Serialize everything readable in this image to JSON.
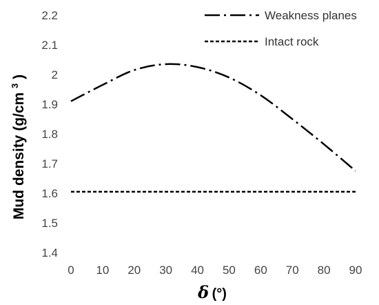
{
  "chart_data": {
    "type": "line",
    "x": [
      0,
      10,
      20,
      30,
      40,
      50,
      60,
      70,
      80,
      90
    ],
    "xlim": [
      0,
      90
    ],
    "ylim": [
      1.4,
      2.2
    ],
    "x_ticks": [
      "0",
      "10",
      "20",
      "30",
      "40",
      "50",
      "60",
      "70",
      "80",
      "90"
    ],
    "y_ticks": [
      "1.4",
      "1.5",
      "1.6",
      "1.7",
      "1.8",
      "1.9",
      "2",
      "2.1",
      "2.2"
    ],
    "xlabel": {
      "symbol": "δ",
      "unit": "(°)"
    },
    "ylabel": {
      "text": "Mud density ",
      "unit": "(g/cm",
      "sup": "3",
      "close": ")"
    },
    "grid": false,
    "legend": "top-right",
    "series": [
      {
        "name": "Weakness planes",
        "style": "dash-dot",
        "color": "#000000",
        "values": [
          1.91,
          1.965,
          2.015,
          2.035,
          2.025,
          1.99,
          1.93,
          1.85,
          1.765,
          1.675
        ]
      },
      {
        "name": "Intact rock",
        "style": "dashed",
        "color": "#000000",
        "values": [
          1.605,
          1.605,
          1.605,
          1.605,
          1.605,
          1.605,
          1.605,
          1.605,
          1.605,
          1.605
        ]
      }
    ]
  }
}
